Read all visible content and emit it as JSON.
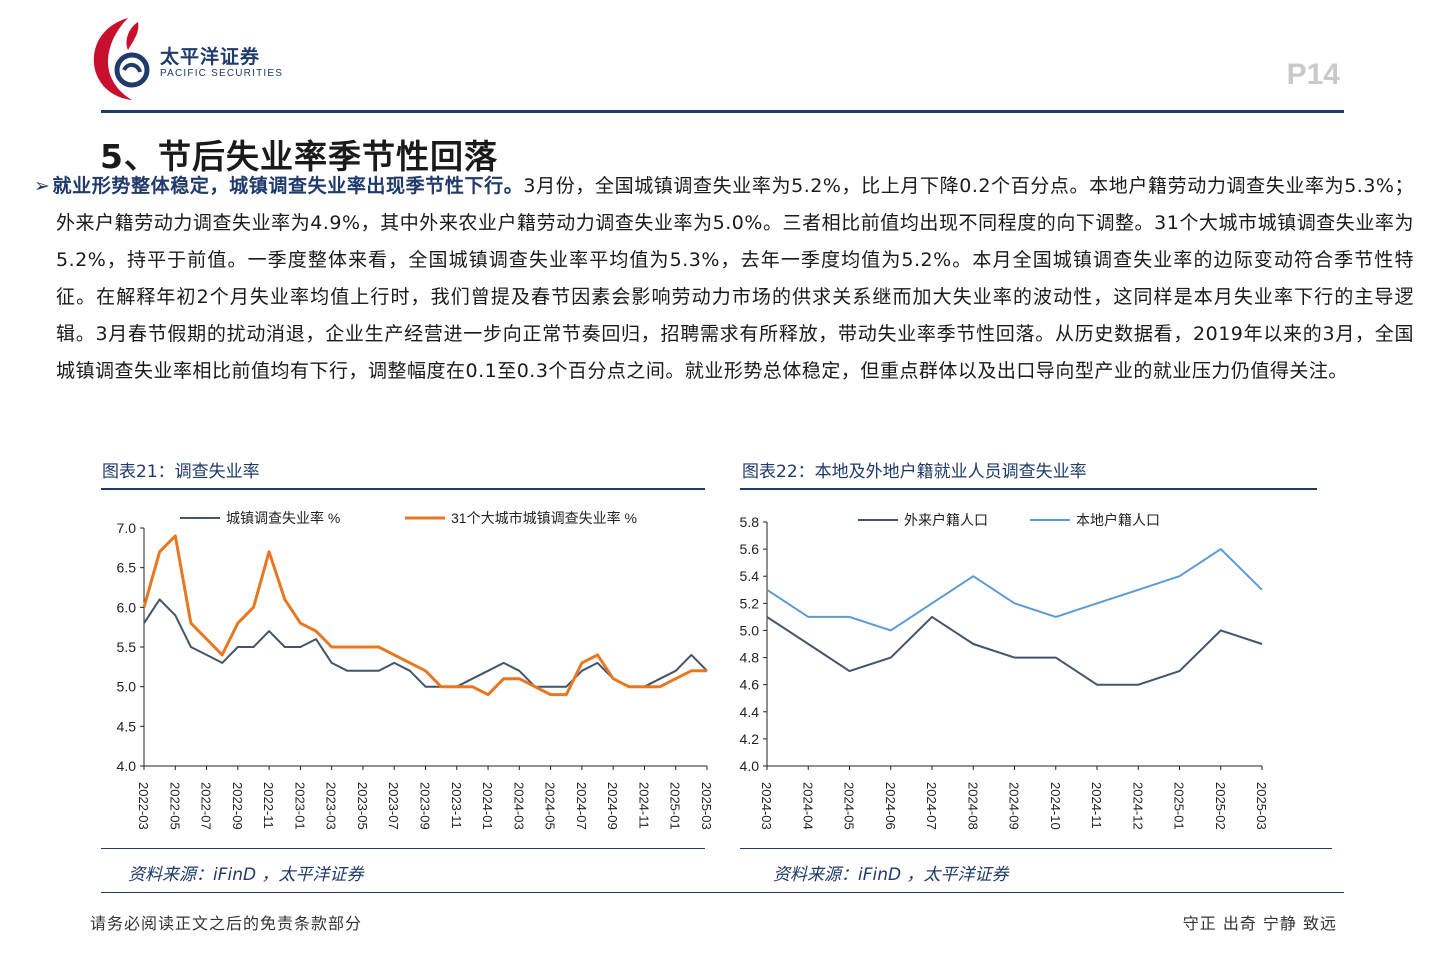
{
  "header": {
    "company_cn": "太平洋证券",
    "company_en": "PACIFIC SECURITIES",
    "page_number": "P14"
  },
  "section": {
    "title": "5、节后失业率季节性回落"
  },
  "body": {
    "arrow": "➢",
    "lead": "就业形势整体稳定，城镇调查失业率出现季节性下行。",
    "text": "3月份，全国城镇调查失业率为5.2%，比上月下降0.2个百分点。本地户籍劳动力调查失业率为5.3%；外来户籍劳动力调查失业率为4.9%，其中外来农业户籍劳动力调查失业率为5.0%。三者相比前值均出现不同程度的向下调整。31个大城市城镇调查失业率为5.2%，持平于前值。一季度整体来看，全国城镇调查失业率平均值为5.3%，去年一季度均值为5.2%。本月全国城镇调查失业率的边际变动符合季节性特征。在解释年初2个月失业率均值上行时，我们曾提及春节因素会影响劳动力市场的供求关系继而加大失业率的波动性，这同样是本月失业率下行的主导逻辑。3月春节假期的扰动消退，企业生产经营进一步向正常节奏回归，招聘需求有所释放，带动失业率季节性回落。从历史数据看，2019年以来的3月，全国城镇调查失业率相比前值均有下行，调整幅度在0.1至0.3个百分点之间。就业形势总体稳定，但重点群体以及出口导向型产业的就业压力仍值得关注。"
  },
  "figure21": {
    "title": "图表21：调查失业率",
    "source": "资料来源：iFinD ，太平洋证券"
  },
  "figure22": {
    "title": "图表22：本地及外地户籍就业人员调查失业率",
    "source": "资料来源：iFinD ，太平洋证券"
  },
  "footer": {
    "disclaimer": "请务必阅读正文之后的免责条款部分",
    "motto": "守正  出奇  宁静  致远"
  },
  "colors": {
    "navy": "#1f3a6b",
    "orange": "#e87722",
    "dark_series": "#44546a",
    "light_series": "#5b9bd5",
    "logo_red": "#c8102e"
  },
  "chart_data": [
    {
      "type": "line",
      "title": "",
      "ylim": [
        4.0,
        7.0
      ],
      "yticks": [
        "7.0",
        "6.5",
        "6.0",
        "5.5",
        "5.0",
        "4.5",
        "4.0"
      ],
      "ytick_values": [
        7.0,
        6.5,
        6.0,
        5.5,
        5.0,
        4.5,
        4.0
      ],
      "x": [
        "2022-03",
        "2022-04",
        "2022-05",
        "2022-06",
        "2022-07",
        "2022-08",
        "2022-09",
        "2022-10",
        "2022-11",
        "2022-12",
        "2023-01",
        "2023-02",
        "2023-03",
        "2023-04",
        "2023-05",
        "2023-06",
        "2023-07",
        "2023-08",
        "2023-09",
        "2023-10",
        "2023-11",
        "2023-12",
        "2024-01",
        "2024-02",
        "2024-03",
        "2024-04",
        "2024-05",
        "2024-06",
        "2024-07",
        "2024-08",
        "2024-09",
        "2024-10",
        "2024-11",
        "2024-12",
        "2025-01",
        "2025-02",
        "2025-03"
      ],
      "xtick_labels": [
        "2022-03",
        "2022-05",
        "2022-07",
        "2022-09",
        "2022-11",
        "2023-01",
        "2023-03",
        "2023-05",
        "2023-07",
        "2023-09",
        "2023-11",
        "2024-01",
        "2024-03",
        "2024-05",
        "2024-07",
        "2024-09",
        "2024-11",
        "2025-01",
        "2025-03"
      ],
      "legend_position": "top",
      "series": [
        {
          "name": "城镇调查失业率 %",
          "color": "#44546a",
          "values": [
            5.8,
            6.1,
            5.9,
            5.5,
            5.4,
            5.3,
            5.5,
            5.5,
            5.7,
            5.5,
            5.5,
            5.6,
            5.3,
            5.2,
            5.2,
            5.2,
            5.3,
            5.2,
            5.0,
            5.0,
            5.0,
            5.1,
            5.2,
            5.3,
            5.2,
            5.0,
            5.0,
            5.0,
            5.2,
            5.3,
            5.1,
            5.0,
            5.0,
            5.1,
            5.2,
            5.4,
            5.2
          ]
        },
        {
          "name": "31个大城市城镇调查失业率 %",
          "color": "#e87722",
          "values": [
            6.0,
            6.7,
            6.9,
            5.8,
            5.6,
            5.4,
            5.8,
            6.0,
            6.7,
            6.1,
            5.8,
            5.7,
            5.5,
            5.5,
            5.5,
            5.5,
            5.4,
            5.3,
            5.2,
            5.0,
            5.0,
            5.0,
            4.9,
            5.1,
            5.1,
            5.0,
            4.9,
            4.9,
            5.3,
            5.4,
            5.1,
            5.0,
            5.0,
            5.0,
            5.1,
            5.2,
            5.2
          ]
        }
      ]
    },
    {
      "type": "line",
      "title": "",
      "ylim": [
        4.0,
        5.8
      ],
      "yticks": [
        "5.8",
        "5.6",
        "5.4",
        "5.2",
        "5.0",
        "4.8",
        "4.6",
        "4.4",
        "4.2",
        "4.0"
      ],
      "ytick_values": [
        5.8,
        5.6,
        5.4,
        5.2,
        5.0,
        4.8,
        4.6,
        4.4,
        4.2,
        4.0
      ],
      "x": [
        "2024-03",
        "2024-04",
        "2024-05",
        "2024-06",
        "2024-07",
        "2024-08",
        "2024-09",
        "2024-10",
        "2024-11",
        "2024-12",
        "2025-01",
        "2025-02",
        "2025-03"
      ],
      "xtick_labels": [
        "2024-03",
        "2024-04",
        "2024-05",
        "2024-06",
        "2024-07",
        "2024-08",
        "2024-09",
        "2024-10",
        "2024-11",
        "2024-12",
        "2025-01",
        "2025-02",
        "2025-03"
      ],
      "legend_position": "top",
      "series": [
        {
          "name": "外来户籍人口",
          "color": "#44546a",
          "values": [
            5.1,
            4.9,
            4.7,
            4.8,
            5.1,
            4.9,
            4.8,
            4.8,
            4.6,
            4.6,
            4.7,
            5.0,
            4.9
          ]
        },
        {
          "name": "本地户籍人口",
          "color": "#5b9bd5",
          "values": [
            5.3,
            5.1,
            5.1,
            5.0,
            5.2,
            5.4,
            5.2,
            5.1,
            5.2,
            5.3,
            5.4,
            5.6,
            5.3
          ]
        }
      ]
    }
  ]
}
